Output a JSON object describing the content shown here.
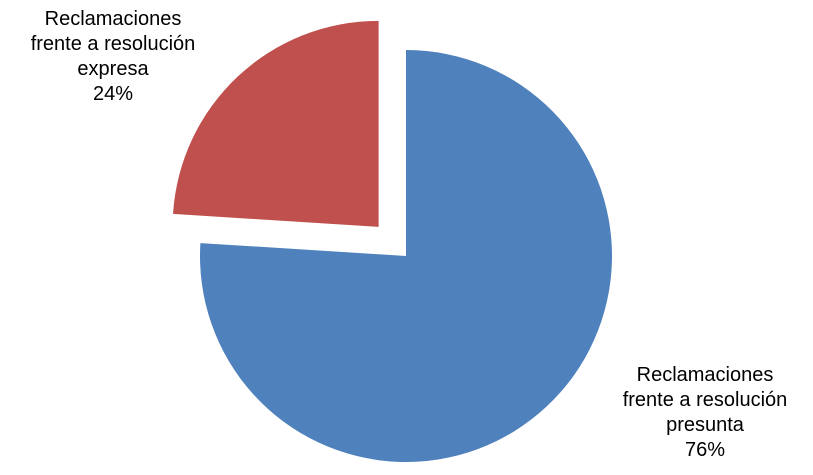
{
  "chart_data": {
    "type": "pie",
    "title": "",
    "slices": [
      {
        "label_lines": [
          "Reclamaciones",
          "frente a resolución",
          "presunta"
        ],
        "percent_label": "76%",
        "value": 76,
        "color": "#4f81bd",
        "exploded": false
      },
      {
        "label_lines": [
          "Reclamaciones",
          "frente a resolución",
          "expresa"
        ],
        "percent_label": "24%",
        "value": 24,
        "color": "#c0504d",
        "exploded": true
      }
    ],
    "legend": "none"
  }
}
